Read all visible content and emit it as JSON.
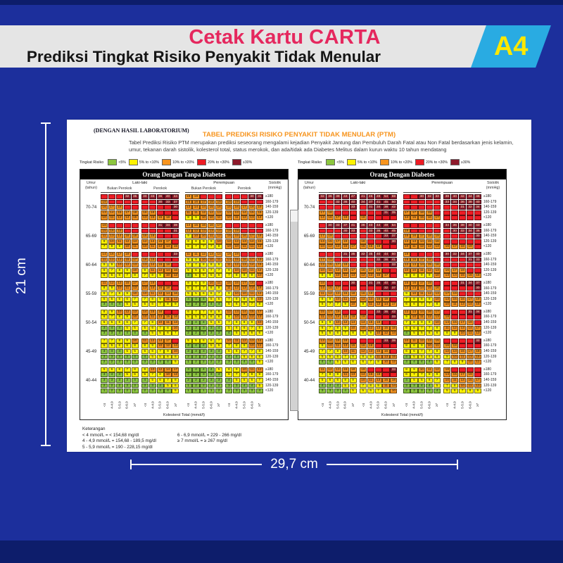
{
  "banner": {
    "title_prefix": "Cetak Kartu ",
    "title_bold": "CARTA",
    "subtitle": "Prediksi Tingkat Risiko Penyakit Tidak Menular",
    "size_badge": "A4"
  },
  "dimensions": {
    "height_label": "21 cm",
    "width_label": "29,7 cm"
  },
  "doc": {
    "lab_note": "(DENGAN HASIL LABORATORIUM)",
    "title": "TABEL PREDIKSI RISIKO PENYAKIT TIDAK MENULAR (PTM)",
    "description": "Tabel Prediksi Risiko PTM merupakan prediksi seseorang mengalami kejadian Penyakit Jantung dan Pembuluh Darah Fatal atau Non Fatal berdasarkan jenis kelamin, umur, tekanan darah sistolik, kolesterol total, status merokok, dan ada/tidak ada Diabetes Melitus dalam kurun waktu 10 tahun mendatang",
    "legend": {
      "label": "Tingkat Risiko",
      "items": [
        {
          "color": "#8CC63F",
          "label": "<5%"
        },
        {
          "color": "#FFF200",
          "label": "5% to <10%"
        },
        {
          "color": "#F7941E",
          "label": "10% to <20%"
        },
        {
          "color": "#ED1C24",
          "label": "20% to <30%"
        },
        {
          "color": "#8E1A2B",
          "label": "≥30%"
        }
      ]
    },
    "risk_colors": {
      "green": "#8CC63F",
      "yellow": "#FFF200",
      "orange": "#F7941E",
      "red": "#ED1C24",
      "darkred": "#8E1A2B"
    },
    "axis": {
      "umur_l1": "Umur",
      "umur_l2": "(tahun)",
      "sistolik_l1": "Sistolik",
      "sistolik_l2": "(mmHg)",
      "male": "Laki-laki",
      "female": "Perempuan",
      "nonsmoker": "Bukan Perokok",
      "smoker": "Perokok",
      "sistolik_rows": [
        "≥180",
        "160-179",
        "140-159",
        "120-139",
        "<120"
      ],
      "chol_ticks": [
        "<4",
        "4-4.9",
        "5-5.9",
        "6-6.9",
        "≥7"
      ],
      "chol_label": "Kolesterol Total (mmol/l)"
    },
    "footer": {
      "heading": "Keterangan",
      "col1": [
        "< 4 mmol/L = < 154,68 mg/dl",
        "4 - 4,9 mmol/L = 154,68 - 189,5 mg/dl",
        "5 - 5,9 mmol/L = 190 - 228,15 mg/dl"
      ],
      "col2": [
        "6 - 6,9 mmol/L = 229 - 266 mg/dl",
        "≥ 7 mmol/L = ≥ 267 mg/dl"
      ]
    },
    "tables": [
      {
        "title": "Orang Dengan Tanpa Diabetes",
        "show_smoker_labels": true,
        "ages": [
          {
            "label": "70-74",
            "blocks": [
              [
                "- - - 32 35",
                "19 - - - -",
                "16 17 18 - -",
                "13 14 15 17 18",
                "10 11 12 14 15"
              ],
              [
                "30 33 36 40 44",
                "- - 30 33 37",
                "- - - - 30",
                "16 18 - - -",
                "13 15 16 18 -"
              ],
              [
                "18 19 - - -",
                "15 16 17 18 19",
                "13 14 14 15 16",
                "11 11 12 12 13",
                "8 9 10 10 11"
              ],
              [
                "- - - 30 31",
                "18 19 - - -",
                "15 16 17 18 19",
                "13 13 14 15 16",
                "10 11 12 13 14"
              ]
            ]
          },
          {
            "label": "65-69",
            "blocks": [
              [
                "18 - - - -",
                "15 16 18 - -",
                "11 13 14 16 18",
                "9 10 11 12 14",
                "7 8 9 10 11"
              ],
              [
                "- - 31 34 38",
                "- - - - 31",
                "16 18 - - -",
                "12 14 15 17 -",
                "10 11 12 14 15"
              ],
              [
                "14 15 16 16 17",
                "12 12 13 13 14",
                "9 10 10 11 12",
                "8 8 9 9 10",
                "6 7 7 7 8"
              ],
              [
                "- - - - -",
                "18 19 - - -",
                "15 15 16 17 18",
                "12 12 13 14 15",
                "10 10 11 11 12"
              ]
            ]
          },
          {
            "label": "60-64",
            "blocks": [
              [
                "14 16 17 19 -",
                "11 12 13 15 17",
                "9 9 10 12 13",
                "6 7 8 9 10",
                "5 5 6 7 8"
              ],
              [
                "- - - - 33",
                "18 19 - - -",
                "13 14 16 18 -",
                "9 11 12 14 16",
                "7 8 9 10 12"
              ],
              [
                "11 11 12 13 14",
                "9 9 10 10 11",
                "7 7 8 8 9",
                "5 6 6 7 7",
                "4 5 5 5 6"
              ],
              [
                "18 19 - - -",
                "14 15 16 17 19",
                "11 12 13 14 15",
                "9 10 10 11 12",
                "7 8 8 9 10"
              ]
            ]
          },
          {
            "label": "55-59",
            "blocks": [
              [
                "11 12 13 15 17",
                "8 9 10 11 13",
                "6 7 8 9 10",
                "5 5 6 6 7",
                "3 4 4 5 5"
              ],
              [
                "17 19 - - -",
                "13 14 16 18 -",
                "10 11 12 14 16",
                "7 8 9 11 12",
                "5 6 7 8 9"
              ],
              [
                "8 8 9 10 11",
                "6 7 7 8 9",
                "5 5 6 6 7",
                "4 4 4 5 5",
                "3 3 3 4 4"
              ],
              [
                "15 16 17 18 -",
                "11 12 13 14 16",
                "9 10 10 11 12",
                "7 8 8 9 10",
                "5 6 6 7 8"
              ]
            ]
          },
          {
            "label": "50-54",
            "blocks": [
              [
                "8 9 10 12 13",
                "6 7 8 9 10",
                "5 5 6 6 7",
                "3 4 4 5 5",
                "3 3 3 4 4"
              ],
              [
                "14 15 18 - -",
                "10 11 13 15 16",
                "7 8 10 11 13",
                "5 6 7 8 10",
                "4 5 5 6 7"
              ],
              [
                "6 7 7 8 9",
                "5 5 5 6 6",
                "4 4 4 5 5",
                "3 3 3 3 4",
                "2 2 3 3 3"
              ],
              [
                "12 13 14 15 17",
                "9 10 11 12 13",
                "7 8 8 9 10",
                "5 6 6 7 8",
                "4 5 5 6 6"
              ]
            ]
          },
          {
            "label": "45-49",
            "blocks": [
              [
                "7 7 8 9 10",
                "5 5 6 6 8",
                "3 4 4 5 5",
                "2 3 3 3 4",
                "2 2 2 3 3"
              ],
              [
                "11 12 14 17 -",
                "8 9 10 12 14",
                "6 6 7 9 10",
                "4 5 5 6 8",
                "3 3 4 4 5"
              ],
              [
                "5 5 6 6 7",
                "4 4 4 5 5",
                "3 3 3 3 4",
                "2 2 2 2 3",
                "1 2 2 2 2"
              ],
              [
                "10 11 12 13 14",
                "7 8 9 10 11",
                "5 6 7 7 8",
                "4 4 5 6 6",
                "3 3 4 4 5"
              ]
            ]
          },
          {
            "label": "40-44",
            "blocks": [
              [
                "5 6 6 7 8",
                "4 4 4 5 6",
                "3 3 3 3 4",
                "2 2 2 3 3",
                "1 2 2 2 2"
              ],
              [
                "9 10 12 14 17",
                "6 7 8 10 12",
                "4 5 6 7 8",
                "3 3 4 5 6",
                "2 3 3 4 5"
              ],
              [
                "3 4 4 4 5",
                "3 3 3 3 4",
                "2 2 2 3 3",
                "1 2 2 2 2",
                "1 1 1 1 2"
              ],
              [
                "8 9 10 11 12",
                "6 7 7 8 9",
                "4 5 5 6 7",
                "3 3 4 4 5",
                "2 3 3 3 4"
              ]
            ]
          }
        ]
      },
      {
        "title": "Orang Dengan Diabetes",
        "show_smoker_labels": false,
        "ages": [
          {
            "label": "70-74",
            "blocks": [
              [
                "32 36 39 43 47",
                "- - 32 36 40",
                "- - - - 33",
                "17 18 - - -",
                "14 16 17 19 -"
              ],
              [
                "41 45 49 54 59",
                "34 37 41 45 50",
                "- 31 34 38 42",
                "- - - 31 35",
                "18 - - - -"
              ],
              [
                "- - 30 32 33",
                "- - - - -",
                "- - - - -",
                "17 17 18 19 -",
                "14 15 15 16 17"
              ],
              [
                "38 40 42 44 46",
                "33 34 36 38 40",
                "- - 31 32 34",
                "- - - - -",
                "- - - - -"
              ]
            ]
          },
          {
            "label": "65-69",
            "blocks": [
              [
                "- 30 33 37 41",
                "- - - 30 33",
                "17 19 - - -",
                "13 15 17 19 -",
                "10 12 13 15 17"
              ],
              [
                "36 40 44 49 54",
                "- 32 36 40 45",
                "- - - 33 37",
                "18 - - - 30",
                "15 16 19 - -"
              ],
              [
                "- - - - -",
                "19 - - - -",
                "15 16 17 18 19",
                "13 13 14 15 16",
                "10 11 12 12 13"
              ],
              [
                "34 36 38 40 43",
                "- 30 32 34 36",
                "- - - - 30",
                "- - - - -",
                "16 17 18 19 -"
              ]
            ]
          },
          {
            "label": "60-64",
            "blocks": [
              [
                "- - - 31 35",
                "17 19 - - -",
                "13 15 17 19 -",
                "10 11 13 15 17",
                "8 9 10 11 13"
              ],
              [
                "32 35 40 44 50",
                "- - 32 36 41",
                "- - - - 33",
                "16 17 19 - -",
                "12 13 15 17 -"
              ],
              [
                "19 - - - -",
                "15 16 17 18 -",
                "12 13 14 15 16",
                "10 10 11 12 13",
                "8 8 9 9 10"
              ],
              [
                "30 32 34 37 40",
                "- - - 31 33",
                "- - - - -",
                "16 17 19 - -",
                "13 14 15 16 18"
              ]
            ]
          },
          {
            "label": "55-59",
            "blocks": [
              [
                "18 - - - 30",
                "14 15 17 - -",
                "11 12 13 15 18",
                "8 9 10 11 13",
                "6 7 7 9 10"
              ],
              [
                "- 31 35 40 46",
                "- - - 32 37",
                "16 19 - - -",
                "12 14 16 19 -",
                "9 11 12 14 17"
              ],
              [
                "15 16 17 19 -",
                "12 13 14 15 16",
                "9 10 11 12 13",
                "7 8 8 9 10",
                "6 6 7 7 8"
              ],
              [
                "- - 31 34 37",
                "- - - - 30",
                "17 19 - - -",
                "13 15 16 17 19",
                "10 11 13 14 15"
              ]
            ]
          },
          {
            "label": "50-54",
            "blocks": [
              [
                "15 17 19 - -",
                "11 13 14 16 19",
                "8 9 10 12 14",
                "6 7 8 9 10",
                "5 5 6 7 8"
              ],
              [
                "- - 32 36 42",
                "19 - - - 33",
                "14 16 18 - -",
                "10 12 13 15 18",
                "8 9 10 12 14"
              ],
              [
                "12 13 14 16 17",
                "9 10 11 12 13",
                "7 8 9 9 10",
                "6 6 7 7 8",
                "4 5 5 6 6"
              ],
              [
                "- - - 31 34",
                "18 - - - -",
                "14 15 17 19 -",
                "11 12 13 14 17",
                "8 9 10 11 13"
              ]
            ]
          },
          {
            "label": "45-49",
            "blocks": [
              [
                "13 14 16 18 -",
                "9 10 11 13 15",
                "7 7 8 10 11",
                "5 5 6 7 8",
                "4 4 5 5 6"
              ],
              [
                "- - - 33 38",
                "16 18 - - -",
                "12 13 15 16 -",
                "8 9 11 13 15",
                "6 7 8 10 12"
              ],
              [
                "10 11 12 13 15",
                "8 8 9 10 11",
                "6 6 7 7 8",
                "4 5 5 6 6",
                "3 4 4 4 5"
              ],
              [
                "- - - - 32",
                "16 18 - - -",
                "12 13 15 17 18",
                "9 10 11 13 15",
                "7 8 9 10 11"
              ]
            ]
          },
          {
            "label": "40-44",
            "blocks": [
              [
                "11 12 13 15 18",
                "7 8 9 11 13",
                "5 6 6 8 9",
                "4 4 4 5 6",
                "3 3 3 4 5"
              ],
              [
                "19 - - - 33",
                "14 16 18 - -",
                "10 11 13 15 18",
                "7 8 9 11 14",
                "5 6 7 8 10"
              ],
              [
                "8 9 10 11 12",
                "6 7 7 8 9",
                "4 5 5 6 7",
                "3 3 4 4 5",
                "2 3 3 3 4"
              ],
              [
                "18 - - - -",
                "14 15 17 19 -",
                "10 11 13 15 17",
                "7 8 10 11 13",
                "5 6 7 8 9"
              ]
            ]
          }
        ]
      }
    ]
  }
}
